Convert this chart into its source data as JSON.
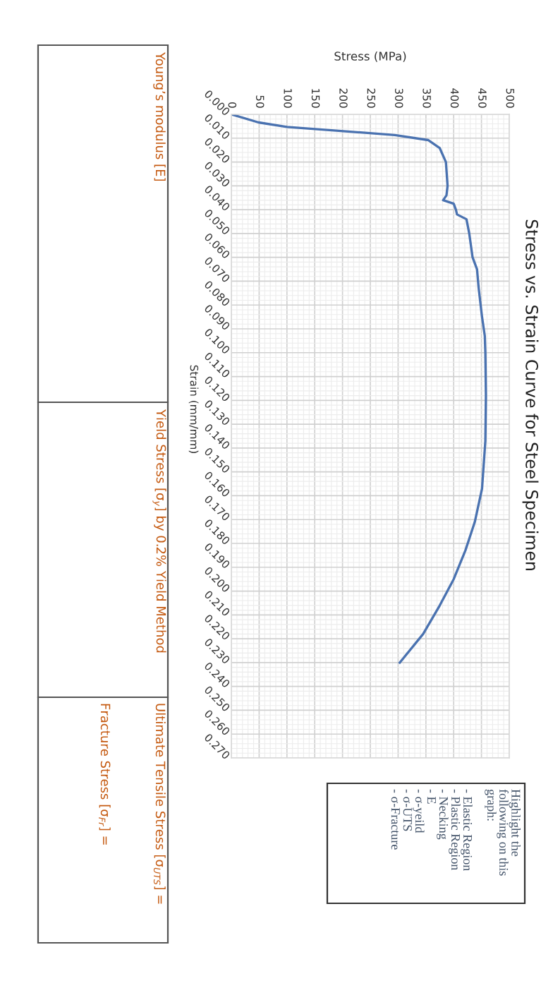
{
  "chart_data": {
    "type": "line",
    "title": "Stress vs. Strain Curve for Steel Specimen",
    "xlabel": "Stress (MPa)",
    "ylabel": "Strain (mm/mm)",
    "x": [
      0,
      49,
      100,
      193,
      294,
      354,
      375,
      386,
      389,
      387,
      381,
      400,
      404,
      406,
      423,
      428,
      434,
      442,
      445,
      451,
      456,
      457,
      458,
      457,
      451,
      438,
      421,
      400,
      375,
      345,
      303
    ],
    "series": [
      {
        "color": "#4a72b0",
        "values": [
          0,
          0.0034,
          0.0053,
          0.0069,
          0.0087,
          0.0108,
          0.0142,
          0.02,
          0.03,
          0.034,
          0.036,
          0.0375,
          0.04,
          0.042,
          0.044,
          0.05,
          0.06,
          0.065,
          0.073,
          0.085,
          0.093,
          0.1,
          0.118,
          0.137,
          0.157,
          0.171,
          0.183,
          0.195,
          0.206,
          0.218,
          0.23
        ]
      }
    ],
    "ylim": [
      0.27,
      0
    ],
    "yticks": [
      {
        "value": 0,
        "label": "0.000"
      },
      {
        "value": 0.01,
        "label": "0.010"
      },
      {
        "value": 0.02,
        "label": "0.020"
      },
      {
        "value": 0.03,
        "label": "0.030"
      },
      {
        "value": 0.04,
        "label": "0.040"
      },
      {
        "value": 0.05,
        "label": "0.050"
      },
      {
        "value": 0.06,
        "label": "0.060"
      },
      {
        "value": 0.07,
        "label": "0.070"
      },
      {
        "value": 0.08,
        "label": "0.080"
      },
      {
        "value": 0.09,
        "label": "0.090"
      },
      {
        "value": 0.1,
        "label": "0.100"
      },
      {
        "value": 0.11,
        "label": "0.110"
      },
      {
        "value": 0.12,
        "label": "0.120"
      },
      {
        "value": 0.13,
        "label": "0.130"
      },
      {
        "value": 0.14,
        "label": "0.140"
      },
      {
        "value": 0.15,
        "label": "0.150"
      },
      {
        "value": 0.16,
        "label": "0.160"
      },
      {
        "value": 0.17,
        "label": "0.170"
      },
      {
        "value": 0.18,
        "label": "0.180"
      },
      {
        "value": 0.19,
        "label": "0.190"
      },
      {
        "value": 0.2,
        "label": "0.200"
      },
      {
        "value": 0.21,
        "label": "0.210"
      },
      {
        "value": 0.22,
        "label": "0.220"
      },
      {
        "value": 0.23,
        "label": "0.230"
      },
      {
        "value": 0.24,
        "label": "0.240"
      },
      {
        "value": 0.25,
        "label": "0.250"
      },
      {
        "value": 0.26,
        "label": "0.260"
      },
      {
        "value": 0.27,
        "label": "0.270"
      }
    ],
    "xlim": [
      0,
      500
    ],
    "xticks": [
      0,
      50,
      100,
      150,
      200,
      250,
      300,
      350,
      400,
      450,
      500
    ],
    "grid": true,
    "legend": false,
    "marker": "none",
    "line_style": "solid",
    "annotations": [
      "Young’s modulus [E]",
      "Yield Stress [σ$_{y}$] by 0.2% Yield Method",
      "Ultimate Tensile Stress [σ$_{UTS}$] =",
      "Fracture Stress [σ$_{Fr}$] =",
      "Highlight the\nfollowing on this\ngraph:\n\n- Elastic Region\n- Plastic Region\n- Necking\n- E\n- σ-yeild\n- σ-UTS\n- σ-Fracture"
    ]
  }
}
